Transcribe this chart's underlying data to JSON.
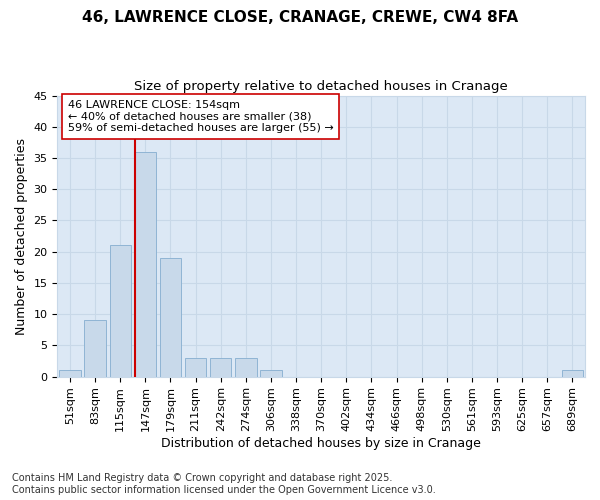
{
  "title_line1": "46, LAWRENCE CLOSE, CRANAGE, CREWE, CW4 8FA",
  "title_line2": "Size of property relative to detached houses in Cranage",
  "xlabel": "Distribution of detached houses by size in Cranage",
  "ylabel": "Number of detached properties",
  "bar_labels": [
    "51sqm",
    "83sqm",
    "115sqm",
    "147sqm",
    "179sqm",
    "211sqm",
    "242sqm",
    "274sqm",
    "306sqm",
    "338sqm",
    "370sqm",
    "402sqm",
    "434sqm",
    "466sqm",
    "498sqm",
    "530sqm",
    "561sqm",
    "593sqm",
    "625sqm",
    "657sqm",
    "689sqm"
  ],
  "bar_values": [
    1,
    9,
    21,
    36,
    19,
    3,
    3,
    3,
    1,
    0,
    0,
    0,
    0,
    0,
    0,
    0,
    0,
    0,
    0,
    0,
    1
  ],
  "bar_color": "#c8d9ea",
  "bar_edgecolor": "#8fb4d4",
  "grid_color": "#c8d8e8",
  "plot_bg_color": "#dce8f5",
  "fig_bg_color": "#ffffff",
  "vline_x": 3.0,
  "vline_color": "#cc0000",
  "annotation_text": "46 LAWRENCE CLOSE: 154sqm\n← 40% of detached houses are smaller (38)\n59% of semi-detached houses are larger (55) →",
  "annotation_box_edgecolor": "#cc0000",
  "annotation_box_facecolor": "#ffffff",
  "ylim": [
    0,
    45
  ],
  "yticks": [
    0,
    5,
    10,
    15,
    20,
    25,
    30,
    35,
    40,
    45
  ],
  "footnote": "Contains HM Land Registry data © Crown copyright and database right 2025.\nContains public sector information licensed under the Open Government Licence v3.0.",
  "title_fontsize": 11,
  "subtitle_fontsize": 9.5,
  "axis_label_fontsize": 9,
  "tick_fontsize": 8,
  "annotation_fontsize": 8,
  "footnote_fontsize": 7
}
